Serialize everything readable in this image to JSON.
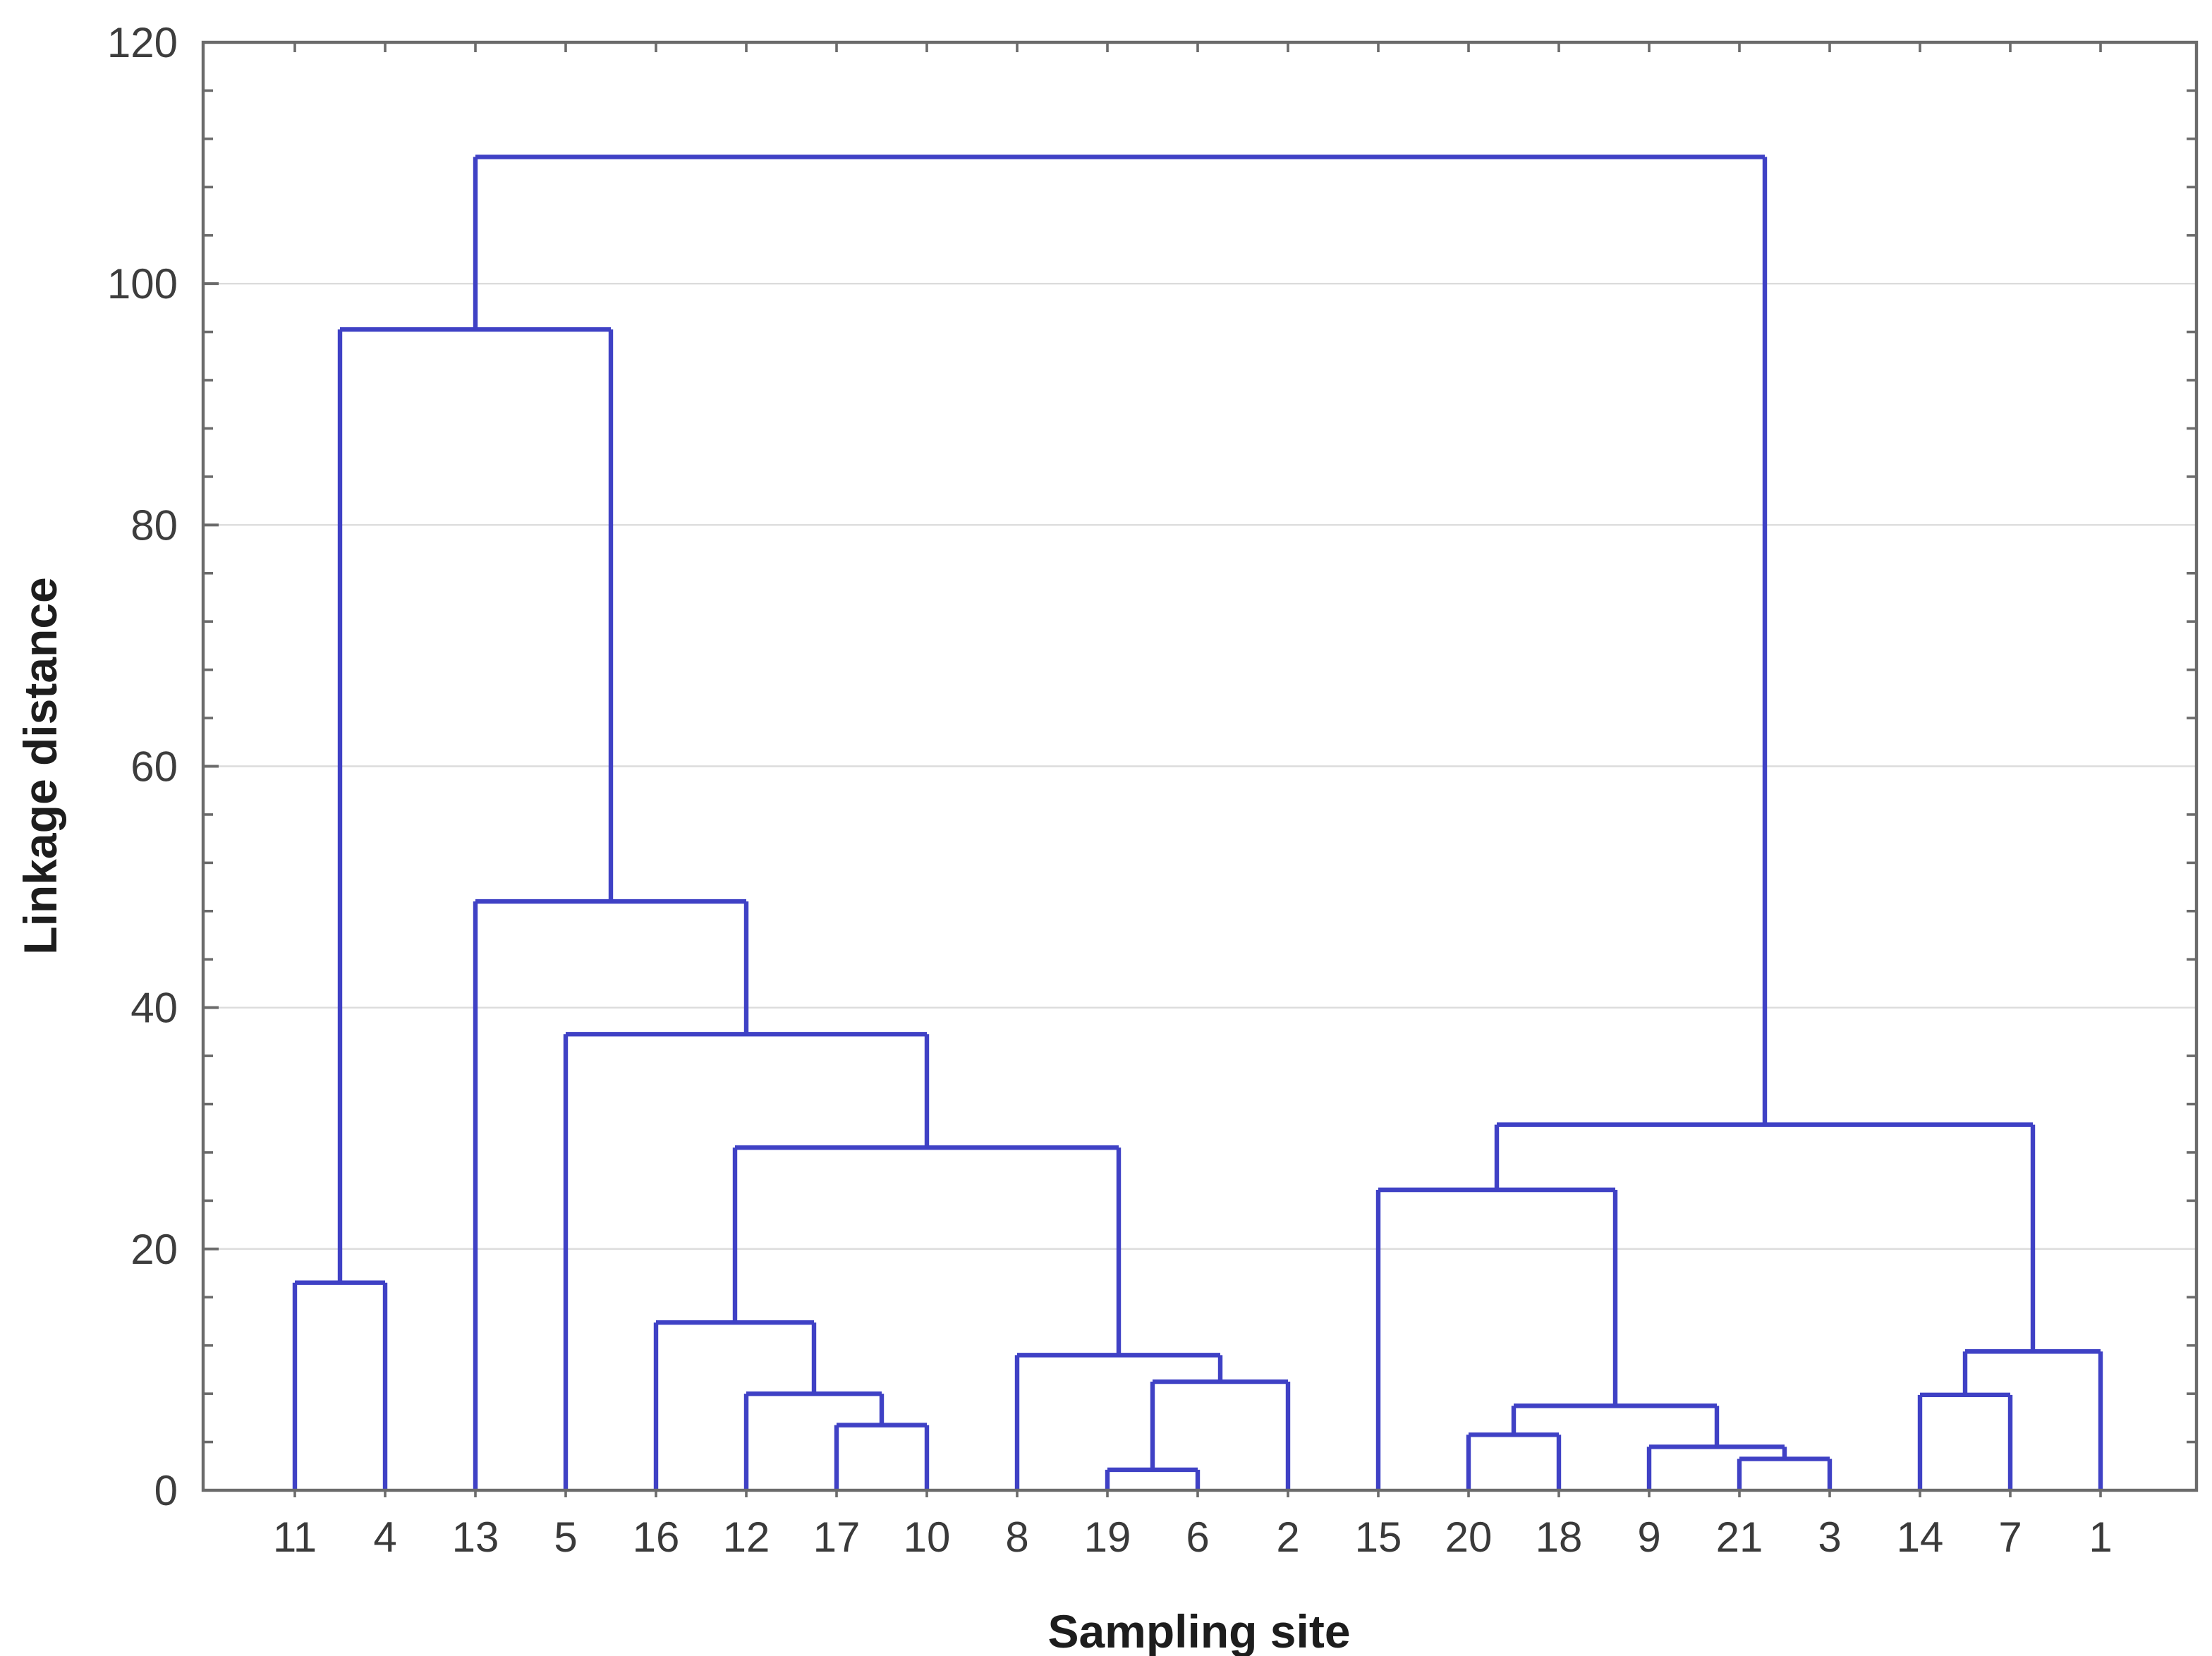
{
  "figure": {
    "xlabel": "Sampling site",
    "ylabel": "Linkage distance"
  },
  "axis": {
    "ylim": [
      0,
      120
    ],
    "yticks": [
      0,
      20,
      40,
      60,
      80,
      100,
      120
    ],
    "minor_tick_step": 4,
    "gridlines_at": [
      20,
      40,
      60,
      80,
      100
    ]
  },
  "colors": {
    "linkage_line": "#3f41c5",
    "axis_frame": "#6b6b6b",
    "gridline": "#dcdcdc",
    "tick_label": "#3d3d3d",
    "leaf_label": "#3a3a3a",
    "axis_title": "#1d1d1d",
    "background": "#ffffff"
  },
  "chart_data": {
    "type": "dendrogram",
    "title": "",
    "xlabel": "Sampling site",
    "ylabel": "Linkage distance",
    "ylim": [
      0,
      120
    ],
    "yticks": [
      0,
      20,
      40,
      60,
      80,
      100,
      120
    ],
    "grid": "horizontal",
    "legend": null,
    "leaf_order": [
      "11",
      "4",
      "13",
      "5",
      "16",
      "12",
      "17",
      "10",
      "8",
      "19",
      "6",
      "2",
      "15",
      "20",
      "18",
      "9",
      "21",
      "3",
      "14",
      "7",
      "1"
    ],
    "linkage_tree": {
      "h": 110.5,
      "children": [
        {
          "h": 96.2,
          "children": [
            {
              "h": 17.2,
              "children": [
                "11",
                "4"
              ]
            },
            {
              "h": 48.8,
              "children": [
                "13",
                {
                  "h": 37.8,
                  "children": [
                    "5",
                    {
                      "h": 28.4,
                      "children": [
                        {
                          "h": 13.9,
                          "children": [
                            "16",
                            {
                              "h": 8.0,
                              "children": [
                                "12",
                                {
                                  "h": 5.4,
                                  "children": [
                                    "17",
                                    "10"
                                  ]
                                }
                              ]
                            }
                          ]
                        },
                        {
                          "h": 11.2,
                          "children": [
                            "8",
                            {
                              "h": 9.0,
                              "children": [
                                {
                                  "h": 1.7,
                                  "children": [
                                    "19",
                                    "6"
                                  ]
                                },
                                "2"
                              ]
                            }
                          ]
                        }
                      ]
                    }
                  ]
                }
              ]
            }
          ]
        },
        {
          "h": 30.3,
          "children": [
            {
              "h": 24.9,
              "children": [
                "15",
                {
                  "h": 7.0,
                  "children": [
                    {
                      "h": 4.6,
                      "children": [
                        "20",
                        "18"
                      ]
                    },
                    {
                      "h": 3.6,
                      "children": [
                        "9",
                        {
                          "h": 2.6,
                          "children": [
                            "21",
                            "3"
                          ]
                        }
                      ]
                    }
                  ]
                }
              ]
            },
            {
              "h": 11.5,
              "children": [
                {
                  "h": 7.9,
                  "children": [
                    "14",
                    "7"
                  ]
                },
                "1"
              ]
            }
          ]
        }
      ]
    }
  }
}
